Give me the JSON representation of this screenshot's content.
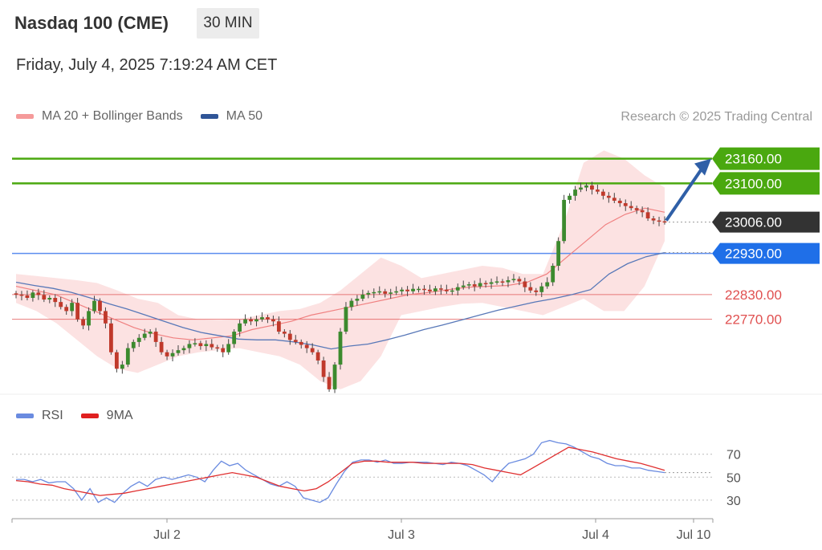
{
  "header": {
    "title": "Nasdaq 100 (CME)",
    "timeframe": "30 MIN"
  },
  "timestamp": "Friday, July 4, 2025 7:19:24 AM CET",
  "legend": {
    "bollinger_label": "MA 20 + Bollinger Bands",
    "ma50_label": "MA 50",
    "credit": "Research © 2025 Trading Central"
  },
  "rsi_legend": {
    "rsi_label": "RSI",
    "ma_label": "9MA"
  },
  "colors": {
    "up_candle": "#3c8a2e",
    "down_candle": "#c0392b",
    "ma20": "#f08080",
    "bands": "#fbd5d5",
    "ma50": "#5878b8",
    "resistance": "#4aa80f",
    "support_line": "#5b8def",
    "support_label": "#1f6fe8",
    "red_level": "#e05050",
    "current": "#333333",
    "rsi": "#6a8be0",
    "rsi_ma": "#e03030"
  },
  "chart_data": [
    {
      "type": "candlestick",
      "title": "Nasdaq 100 (CME)",
      "timeframe": "30 MIN",
      "x_tick_labels": [
        "Jul 2",
        "Jul 3",
        "Jul 4",
        "Jul 10"
      ],
      "ylim": [
        22590,
        23210
      ],
      "current_price": "23006.00",
      "levels": [
        {
          "value": 23160.0,
          "label": "23160.00",
          "kind": "resistance",
          "target": true
        },
        {
          "value": 23100.0,
          "label": "23100.00",
          "kind": "resistance"
        },
        {
          "value": 23006.0,
          "label": "23006.00",
          "kind": "current"
        },
        {
          "value": 22930.0,
          "label": "22930.00",
          "kind": "pivot"
        },
        {
          "value": 22830.0,
          "label": "22830.00",
          "kind": "support"
        },
        {
          "value": 22770.0,
          "label": "22770.00",
          "kind": "support"
        }
      ],
      "close_series": [
        22830,
        22828,
        22822,
        22835,
        22829,
        22818,
        22822,
        22812,
        22800,
        22790,
        22810,
        22770,
        22755,
        22790,
        22815,
        22790,
        22760,
        22690,
        22650,
        22660,
        22700,
        22715,
        22725,
        22735,
        22740,
        22715,
        22690,
        22680,
        22688,
        22695,
        22700,
        22710,
        22712,
        22705,
        22710,
        22702,
        22700,
        22690,
        22710,
        22740,
        22760,
        22770,
        22765,
        22770,
        22775,
        22770,
        22765,
        22740,
        22735,
        22720,
        22715,
        22708,
        22700,
        22690,
        22670,
        22630,
        22600,
        22660,
        22740,
        22800,
        22815,
        22820,
        22830,
        22834,
        22836,
        22838,
        22832,
        22835,
        22838,
        22842,
        22838,
        22844,
        22844,
        22842,
        22838,
        22845,
        22842,
        22838,
        22840,
        22848,
        22852,
        22855,
        22850,
        22858,
        22856,
        22860,
        22862,
        22860,
        22865,
        22868,
        22862,
        22848,
        22840,
        22836,
        22850,
        22860,
        22900,
        22960,
        23060,
        23070,
        23085,
        23090,
        23095,
        23085,
        23080,
        23070,
        23065,
        23058,
        23052,
        23045,
        23040,
        23035,
        23030,
        23015,
        23010,
        23008,
        23006
      ],
      "ma20_series": [
        22850,
        22840,
        22830,
        22810,
        22790,
        22770,
        22750,
        22735,
        22725,
        22720,
        22725,
        22730,
        22745,
        22755,
        22765,
        22780,
        22790,
        22800,
        22810,
        22820,
        22830,
        22835,
        22842,
        22848,
        22850,
        22852,
        22860,
        22880,
        22920,
        22960,
        23000,
        23025,
        23040,
        23030
      ],
      "ma50_series": [
        22860,
        22852,
        22845,
        22835,
        22822,
        22808,
        22795,
        22780,
        22765,
        22750,
        22738,
        22730,
        22722,
        22720,
        22720,
        22715,
        22708,
        22698,
        22705,
        22710,
        22720,
        22732,
        22745,
        22756,
        22768,
        22780,
        22792,
        22802,
        22812,
        22820,
        22830,
        22842,
        22880,
        22905,
        22922,
        22932
      ],
      "bollinger_upper": [
        22880,
        22875,
        22870,
        22865,
        22858,
        22840,
        22820,
        22810,
        22780,
        22770,
        22768,
        22770,
        22780,
        22790,
        22795,
        22810,
        22840,
        22880,
        22920,
        22900,
        22870,
        22880,
        22890,
        22900,
        22895,
        22880,
        22880,
        23000,
        23150,
        23180,
        23160,
        23120,
        23090
      ],
      "bollinger_lower": [
        22810,
        22790,
        22760,
        22720,
        22680,
        22650,
        22640,
        22660,
        22680,
        22690,
        22695,
        22700,
        22690,
        22680,
        22660,
        22620,
        22600,
        22620,
        22680,
        22780,
        22790,
        22800,
        22808,
        22810,
        22800,
        22790,
        22780,
        22800,
        22820,
        22790,
        22790,
        22850,
        22960
      ]
    },
    {
      "type": "line",
      "title": "RSI",
      "series_names": [
        "RSI",
        "9MA"
      ],
      "y_tick_labels": [
        "70",
        "50",
        "30"
      ],
      "ylim": [
        18,
        88
      ],
      "reference_levels": [
        70,
        50,
        30
      ],
      "rsi_series": [
        48,
        48,
        46,
        48,
        45,
        46,
        46,
        40,
        30,
        40,
        28,
        32,
        28,
        36,
        42,
        46,
        42,
        48,
        50,
        48,
        50,
        52,
        50,
        46,
        56,
        64,
        60,
        62,
        56,
        52,
        48,
        44,
        42,
        46,
        42,
        32,
        30,
        28,
        32,
        44,
        55,
        63,
        65,
        65,
        63,
        65,
        62,
        62,
        63,
        63,
        63,
        62,
        61,
        63,
        62,
        60,
        56,
        52,
        46,
        55,
        62,
        64,
        66,
        70,
        80,
        82,
        80,
        79,
        76,
        72,
        68,
        66,
        62,
        60,
        60,
        58,
        58,
        56,
        55,
        54
      ],
      "ma9_series": [
        47,
        46,
        44,
        43,
        40,
        38,
        36,
        34,
        35,
        36,
        38,
        40,
        42,
        44,
        46,
        48,
        50,
        52,
        54,
        52,
        50,
        46,
        42,
        40,
        38,
        40,
        46,
        54,
        62,
        64,
        64,
        63,
        63,
        63,
        62,
        62,
        62,
        62,
        61,
        58,
        56,
        54,
        52,
        58,
        64,
        70,
        76,
        74,
        72,
        69,
        66,
        64,
        62,
        59,
        56
      ]
    }
  ]
}
